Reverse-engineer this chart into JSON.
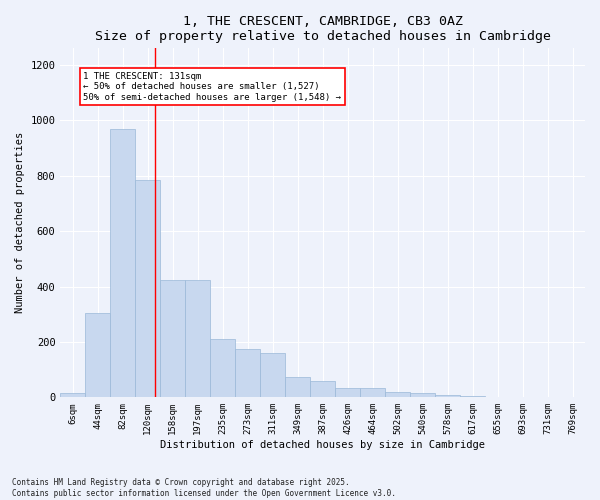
{
  "title": "1, THE CRESCENT, CAMBRIDGE, CB3 0AZ",
  "subtitle": "Size of property relative to detached houses in Cambridge",
  "xlabel": "Distribution of detached houses by size in Cambridge",
  "ylabel": "Number of detached properties",
  "categories": [
    "6sqm",
    "44sqm",
    "82sqm",
    "120sqm",
    "158sqm",
    "197sqm",
    "235sqm",
    "273sqm",
    "311sqm",
    "349sqm",
    "387sqm",
    "426sqm",
    "464sqm",
    "502sqm",
    "540sqm",
    "578sqm",
    "617sqm",
    "655sqm",
    "693sqm",
    "731sqm",
    "769sqm"
  ],
  "values": [
    15,
    305,
    970,
    785,
    425,
    425,
    210,
    175,
    160,
    75,
    60,
    35,
    35,
    20,
    15,
    8,
    5,
    3,
    2,
    0,
    3
  ],
  "bar_color": "#c8d8ef",
  "bar_edge_color": "#9ab8d8",
  "background_color": "#eef2fb",
  "grid_color": "#ffffff",
  "annotation_line1": "1 THE CRESCENT: 131sqm",
  "annotation_line2": "← 50% of detached houses are smaller (1,527)",
  "annotation_line3": "50% of semi-detached houses are larger (1,548) →",
  "ylim": [
    0,
    1260
  ],
  "yticks": [
    0,
    200,
    400,
    600,
    800,
    1000,
    1200
  ],
  "footnote1": "Contains HM Land Registry data © Crown copyright and database right 2025.",
  "footnote2": "Contains public sector information licensed under the Open Government Licence v3.0."
}
